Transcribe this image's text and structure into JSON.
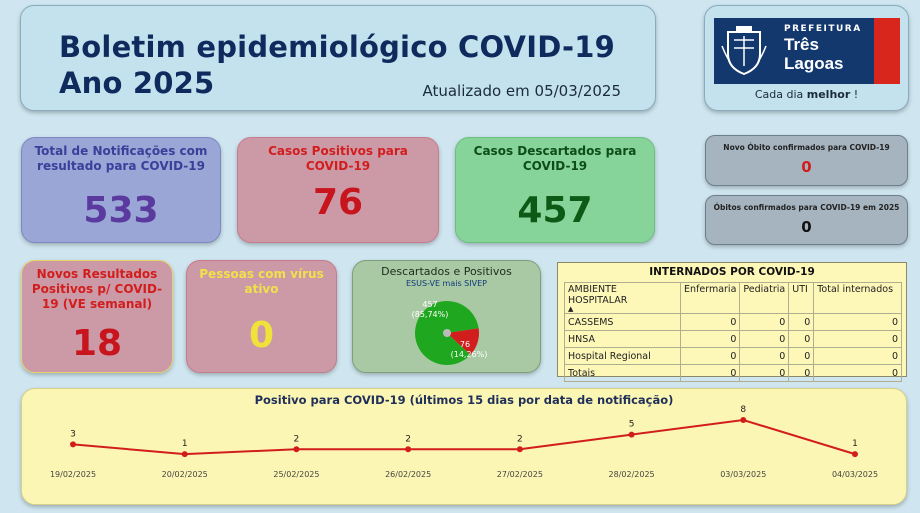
{
  "header": {
    "title_line1": "Boletim epidemiológico COVID-19",
    "title_line2": "Ano 2025",
    "updated": "Atualizado em 05/03/2025"
  },
  "logo": {
    "prefeitura": "PREFEITURA",
    "city_line1": "Três",
    "city_line2": "Lagoas",
    "tagline_prefix": "Cada dia ",
    "tagline_bold": "melhor",
    "tagline_suffix": " !",
    "colors": {
      "banner": "#13386e",
      "stripe": "#d9261c"
    }
  },
  "kpis": {
    "total": {
      "label": "Total de Notificações com resultado para COVID-19",
      "value": "533"
    },
    "positivos": {
      "label": "Casos Positivos para COVID-19",
      "value": "76"
    },
    "descartados": {
      "label": "Casos Descartados para COVID-19",
      "value": "457"
    },
    "novos": {
      "label": "Novos Resultados Positivos p/ COVID-19 (VE semanal)",
      "value": "18"
    },
    "virus_ativo": {
      "label": "Pessoas com vírus ativo",
      "value": "0"
    }
  },
  "pie": {
    "title": "Descartados e Positivos",
    "subtitle": "ESUS-VE mais SIVEP",
    "slices": [
      {
        "label": "457",
        "pct": "(85,74%)",
        "value": 457,
        "color": "#1fa81f"
      },
      {
        "label": "76",
        "pct": "(14,26%)",
        "value": 76,
        "color": "#d21d1d"
      }
    ]
  },
  "obitos": {
    "novo": {
      "label": "Novo Óbito confirmados para COVID-19",
      "value": "0"
    },
    "total": {
      "label": "Óbitos confirmados para COVID-19 em 2025",
      "value": "0"
    }
  },
  "table": {
    "title": "INTERNADOS POR COVID-19",
    "columns": [
      "AMBIENTE HOSPITALAR",
      "Enfermaria",
      "Pediatria",
      "UTI",
      "Total internados"
    ],
    "rows": [
      [
        "CASSEMS",
        "0",
        "0",
        "0",
        "0"
      ],
      [
        "HNSA",
        "0",
        "0",
        "0",
        "0"
      ],
      [
        "Hospital Regional",
        "0",
        "0",
        "0",
        "0"
      ],
      [
        "Totais",
        "0",
        "0",
        "0",
        "0"
      ]
    ]
  },
  "chart_data": {
    "type": "line",
    "title": "Positivo para COVID-19 (últimos 15 dias por data de notificação)",
    "x": [
      "19/02/2025",
      "20/02/2025",
      "25/02/2025",
      "26/02/2025",
      "27/02/2025",
      "28/02/2025",
      "03/03/2025",
      "04/03/2025"
    ],
    "series": [
      {
        "values": [
          3,
          1,
          2,
          2,
          2,
          5,
          8,
          1
        ],
        "color": "#d21d1d"
      }
    ],
    "ylim": [
      0,
      8
    ],
    "grid": false
  }
}
